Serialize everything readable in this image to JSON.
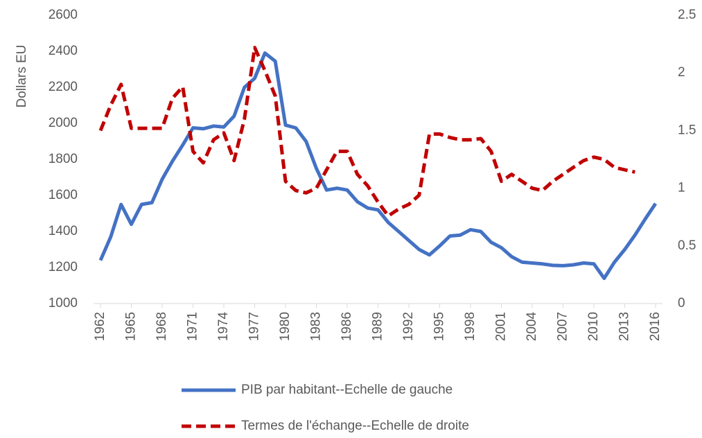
{
  "chart_data": {
    "type": "line",
    "y_label": "Dollars EU",
    "x": [
      1962,
      1963,
      1964,
      1965,
      1966,
      1967,
      1968,
      1969,
      1970,
      1971,
      1972,
      1973,
      1974,
      1975,
      1976,
      1977,
      1978,
      1979,
      1980,
      1981,
      1982,
      1983,
      1984,
      1985,
      1986,
      1987,
      1988,
      1989,
      1990,
      1991,
      1992,
      1993,
      1994,
      1995,
      1996,
      1997,
      1998,
      1999,
      2000,
      2001,
      2002,
      2003,
      2004,
      2005,
      2006,
      2007,
      2008,
      2009,
      2010,
      2011,
      2012,
      2013,
      2014,
      2015,
      2016
    ],
    "xlim": [
      1962,
      2016
    ],
    "xticks": [
      1962,
      1965,
      1968,
      1971,
      1974,
      1977,
      1980,
      1983,
      1986,
      1989,
      1992,
      1995,
      1998,
      2001,
      2004,
      2007,
      2010,
      2013,
      2016
    ],
    "ylim": [
      1000,
      2600
    ],
    "yticks": [
      1000,
      1200,
      1400,
      1600,
      1800,
      2000,
      2200,
      2400,
      2600
    ],
    "y2lim": [
      0,
      2.5
    ],
    "y2ticks": [
      0,
      0.5,
      1,
      1.5,
      2,
      2.5
    ],
    "grid": false,
    "legend": "bottom",
    "series": [
      {
        "name": "PIB par habitant--Echelle de gauche",
        "color": "#4472c4",
        "dash": false,
        "values": [
          1240,
          1370,
          1550,
          1440,
          1550,
          1560,
          1690,
          1790,
          1880,
          1975,
          1970,
          1985,
          1980,
          2040,
          2200,
          2250,
          2390,
          2345,
          1990,
          1975,
          1900,
          1750,
          1630,
          1640,
          1630,
          1565,
          1530,
          1520,
          1450,
          1400,
          1350,
          1300,
          1270,
          1320,
          1375,
          1380,
          1410,
          1400,
          1340,
          1310,
          1260,
          1230,
          1225,
          1220,
          1212,
          1210,
          1215,
          1225,
          1220,
          1140,
          1230,
          1300,
          1380,
          1470,
          1555
        ]
      },
      {
        "name": "Termes de l'échange--Echelle de droite",
        "color": "#c00000",
        "dash": true,
        "axis": "y2",
        "values": [
          1.5,
          1.72,
          1.9,
          1.52,
          1.52,
          1.52,
          1.52,
          1.78,
          1.88,
          1.32,
          1.22,
          1.42,
          1.48,
          1.24,
          1.6,
          2.22,
          2.02,
          1.8,
          1.06,
          0.98,
          0.96,
          1.0,
          1.16,
          1.32,
          1.32,
          1.12,
          1.02,
          0.88,
          0.76,
          0.82,
          0.86,
          0.94,
          1.47,
          1.47,
          1.44,
          1.42,
          1.42,
          1.43,
          1.32,
          1.06,
          1.12,
          1.06,
          1.0,
          0.98,
          1.06,
          1.12,
          1.18,
          1.24,
          1.27,
          1.25,
          1.18,
          1.16,
          1.14,
          null,
          null
        ]
      }
    ]
  }
}
